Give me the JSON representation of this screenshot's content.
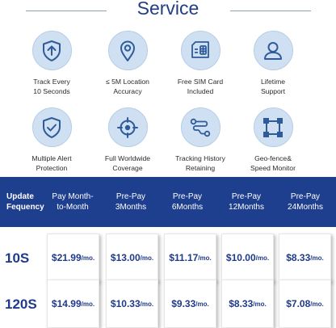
{
  "title": "Service",
  "features": [
    {
      "label": "Track Every\n10 Seconds",
      "icon": "arrow-shield-icon"
    },
    {
      "label": "≤ 5M Location\nAccuracy",
      "icon": "location-pin-icon"
    },
    {
      "label": "Free SIM Card\nIncluded",
      "icon": "sim-card-icon"
    },
    {
      "label": "Lifetime\nSupport",
      "icon": "person-icon"
    },
    {
      "label": "Multiple Alert\nProtection",
      "icon": "check-shield-icon"
    },
    {
      "label": "Full Worldwide\nCoverage",
      "icon": "crosshair-icon"
    },
    {
      "label": "Tracking History\nRetaining",
      "icon": "route-icon"
    },
    {
      "label": "Geo-fence&\nSpeed Monitor",
      "icon": "geofence-icon"
    }
  ],
  "table": {
    "header": [
      "Update\nFequency",
      "Pay Month-\nto-Month",
      "Pre-Pay\n3Months",
      "Pre-Pay\n6Months",
      "Pre-Pay\n12Months",
      "Pre-Pay\n24Months"
    ],
    "rows": [
      {
        "frequency": "10S",
        "prices": [
          "$21.99",
          "$13.00",
          "$11.17",
          "$10.00",
          "$8.33"
        ]
      },
      {
        "frequency": "120S",
        "prices": [
          "$14.99",
          "$10.33",
          "$9.33",
          "$8.33",
          "$7.08"
        ]
      }
    ],
    "unit": "/mo."
  },
  "colors": {
    "accent": "#1e3e8e",
    "icon_bg": "#cfe0f2",
    "icon_stroke": "#2f5b9a"
  }
}
